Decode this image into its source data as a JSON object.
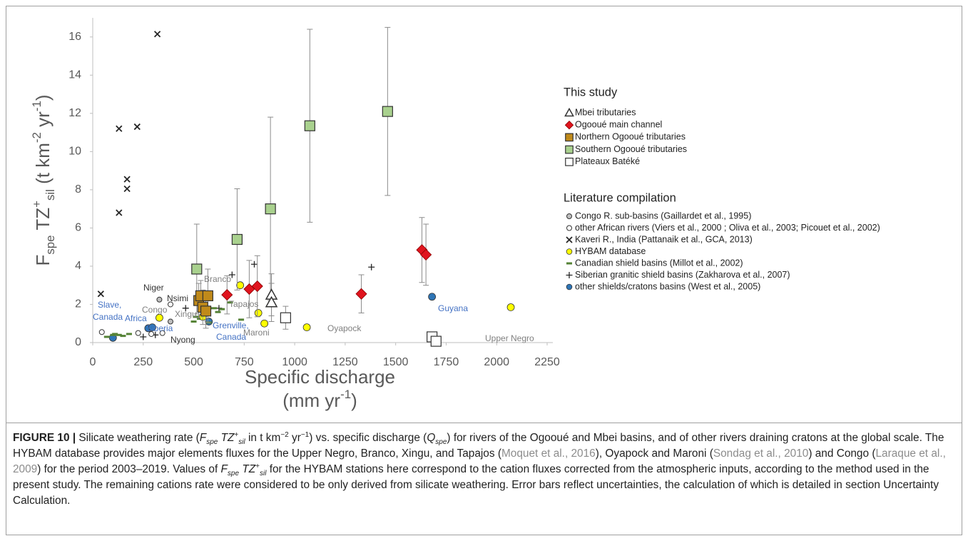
{
  "chart_data": {
    "type": "scatter",
    "ylabel": [
      {
        "text": "F",
        "kind": "n"
      },
      {
        "text": "spe",
        "kind": "sub"
      },
      {
        "text": " TZ",
        "kind": "n"
      },
      {
        "text": "+",
        "kind": "sup"
      },
      {
        "text": "sil",
        "kind": "sub"
      },
      {
        "text": " (t km",
        "kind": "n"
      },
      {
        "text": "-2",
        "kind": "sup"
      },
      {
        "text": " yr",
        "kind": "n"
      },
      {
        "text": "-1",
        "kind": "sup"
      },
      {
        "text": ")",
        "kind": "n"
      }
    ],
    "xlabel": [
      [
        {
          "text": "Specific discharge",
          "kind": "n"
        }
      ],
      [
        {
          "text": "(mm yr",
          "kind": "n"
        },
        {
          "text": "-1",
          "kind": "sup"
        },
        {
          "text": ")",
          "kind": "n"
        }
      ]
    ],
    "xlim": [
      0,
      2250
    ],
    "xticks": [
      0,
      250,
      500,
      750,
      1000,
      1250,
      1500,
      1750,
      2000,
      2250
    ],
    "ylim": [
      0,
      17
    ],
    "yticks": [
      0,
      2,
      4,
      6,
      8,
      10,
      12,
      14,
      16
    ],
    "legend_titles": [
      "This study",
      "Literature compilation"
    ],
    "series": [
      {
        "name": "Mbei tributaries",
        "marker": "triangle",
        "color": "#ffffff",
        "x": [
          885,
          885
        ],
        "y": [
          2.5,
          2.1
        ],
        "err": [
          1.1,
          1.0
        ]
      },
      {
        "name": "Ogooué main channel",
        "marker": "diamond",
        "color": "#e0141e",
        "x": [
          665,
          775,
          815,
          1330,
          1630,
          1650
        ],
        "y": [
          2.5,
          2.8,
          2.95,
          2.55,
          4.85,
          4.6
        ],
        "err": [
          1.0,
          1.5,
          1.6,
          1.0,
          1.7,
          1.6
        ]
      },
      {
        "name": "Northern Ogooué tributaries",
        "marker": "square",
        "color": "#c08a1a",
        "x": [
          525,
          535,
          570,
          545,
          560
        ],
        "y": [
          2.2,
          2.45,
          2.45,
          1.85,
          1.65
        ],
        "err": [
          0.9,
          0.8,
          1.4,
          0.9,
          0.9
        ]
      },
      {
        "name": "Southern Ogooué tributaries",
        "marker": "square",
        "color": "#a9d18e",
        "x": [
          515,
          715,
          880,
          1075,
          1460
        ],
        "y": [
          3.85,
          5.4,
          7.0,
          11.35,
          12.1
        ],
        "err": [
          2.35,
          2.65,
          4.8,
          5.05,
          4.4
        ]
      },
      {
        "name": "Plateaux Batéké",
        "marker": "square",
        "color": "#ffffff",
        "x": [
          955,
          1680,
          1700
        ],
        "y": [
          1.3,
          0.3,
          0.07
        ],
        "err": [
          0.6,
          null,
          null
        ]
      },
      {
        "name": "Congo R. sub-basins (Gaillardet et al., 1995)",
        "marker": "circle",
        "color": "#bfbfbf",
        "x": [
          330,
          385
        ],
        "y": [
          2.25,
          1.1
        ]
      },
      {
        "name": "other African rivers (Viers et al., 2000 ; Oliva et al., 2003; Picouet et al., 2002)",
        "marker": "circle",
        "color": "#ffffff",
        "x": [
          45,
          225,
          290,
          345,
          385
        ],
        "y": [
          0.55,
          0.5,
          0.45,
          0.5,
          2.0
        ]
      },
      {
        "name": "Kaveri R., India (Pattanaik et al., GCA, 2013)",
        "marker": "x",
        "color": "#262626",
        "x": [
          40,
          130,
          220,
          130,
          170,
          170,
          320
        ],
        "y": [
          2.55,
          11.2,
          11.3,
          6.8,
          8.55,
          8.05,
          16.15
        ]
      },
      {
        "name": "HYBAM database",
        "marker": "circle-lg",
        "color": "#ffff00",
        "x": [
          330,
          545,
          730,
          820,
          850,
          1060,
          2070
        ],
        "y": [
          1.3,
          1.35,
          3.0,
          1.55,
          1.0,
          0.8,
          1.85
        ]
      },
      {
        "name": "Canadian shield basins (Millot et al., 2002)",
        "marker": "dash",
        "color": "#548235",
        "x": [
          70,
          100,
          110,
          130,
          150,
          180,
          500,
          510,
          530,
          555,
          575,
          600,
          620,
          640,
          680,
          735,
          540
        ],
        "y": [
          0.3,
          0.4,
          0.45,
          0.4,
          0.35,
          0.45,
          1.1,
          1.35,
          1.25,
          1.5,
          1.05,
          1.8,
          1.6,
          1.75,
          2.1,
          1.2,
          2.0
        ]
      },
      {
        "name": "Siberian granitic shield basins (Zakharova et al., 2007)",
        "marker": "plus",
        "color": "#262626",
        "x": [
          250,
          310,
          460,
          560,
          625,
          690,
          800,
          1380
        ],
        "y": [
          0.3,
          0.4,
          1.8,
          1.85,
          1.8,
          3.55,
          4.1,
          3.95
        ]
      },
      {
        "name": "other shields/cratons basins (West et al., 2005)",
        "marker": "circle-lg",
        "color": "#2e75b6",
        "x": [
          100,
          275,
          295,
          575,
          1680
        ],
        "y": [
          0.25,
          0.75,
          0.8,
          1.1,
          2.4
        ]
      }
    ],
    "annotations": [
      {
        "text": "Slave,",
        "color": "#4472c4"
      },
      {
        "text": "Canada",
        "color": "#4472c4"
      },
      {
        "text": "Africa",
        "color": "#4472c4"
      },
      {
        "text": "Siberia",
        "color": "#4472c4"
      },
      {
        "text": "Grenville,",
        "color": "#4472c4"
      },
      {
        "text": "Canada",
        "color": "#4472c4"
      },
      {
        "text": "Guyana",
        "color": "#4472c4"
      },
      {
        "text": "Nyong",
        "color": "#333333"
      },
      {
        "text": "Nsimi",
        "color": "#333333"
      },
      {
        "text": "Niger",
        "color": "#333333"
      },
      {
        "text": "Congo",
        "color": "#808080"
      },
      {
        "text": "Xingu",
        "color": "#808080"
      },
      {
        "text": "Tapajos",
        "color": "#808080"
      },
      {
        "text": "Branco",
        "color": "#808080"
      },
      {
        "text": "Maroni",
        "color": "#808080"
      },
      {
        "text": "Oyapock",
        "color": "#808080"
      },
      {
        "text": "Upper Negro",
        "color": "#808080"
      }
    ]
  },
  "caption": {
    "label": "FIGURE 10 |",
    "segments": [
      {
        "text": " Silicate weathering rate (",
        "kind": "n"
      },
      {
        "text": "F",
        "kind": "i"
      },
      {
        "text": "spe",
        "kind": "isub"
      },
      {
        "text": " TZ",
        "kind": "i"
      },
      {
        "text": "+",
        "kind": "sup"
      },
      {
        "text": "sil",
        "kind": "isub"
      },
      {
        "text": " in t km",
        "kind": "n"
      },
      {
        "text": "−2",
        "kind": "sup"
      },
      {
        "text": " yr",
        "kind": "n"
      },
      {
        "text": "−1",
        "kind": "sup"
      },
      {
        "text": ") vs. specific discharge (",
        "kind": "n"
      },
      {
        "text": "Q",
        "kind": "i"
      },
      {
        "text": "spe",
        "kind": "isub"
      },
      {
        "text": ") for rivers of the Ogooué and Mbei basins, and of other rivers draining cratons at the global scale. The HYBAM database provides major elements fluxes for the Upper Negro, Branco, Xingu, and Tapajos (",
        "kind": "n"
      },
      {
        "text": "Moquet et al., 2016",
        "kind": "link"
      },
      {
        "text": "), Oyapock and Maroni (",
        "kind": "n"
      },
      {
        "text": "Sondag et al., 2010",
        "kind": "link"
      },
      {
        "text": ") and Congo (",
        "kind": "n"
      },
      {
        "text": "Laraque et al., 2009",
        "kind": "link"
      },
      {
        "text": ") for the period 2003–2019. Values of ",
        "kind": "n"
      },
      {
        "text": "F",
        "kind": "i"
      },
      {
        "text": "spe",
        "kind": "isub"
      },
      {
        "text": " TZ",
        "kind": "i"
      },
      {
        "text": "+",
        "kind": "sup"
      },
      {
        "text": "sil",
        "kind": "isub"
      },
      {
        "text": " for the HYBAM stations here correspond to the cation fluxes corrected from the atmospheric inputs, according to the method used in the present study. The remaining cations rate were considered to be only derived from silicate weathering. Error bars reflect uncertainties, the calculation of which is detailed in section Uncertainty Calculation.",
        "kind": "n"
      }
    ]
  }
}
